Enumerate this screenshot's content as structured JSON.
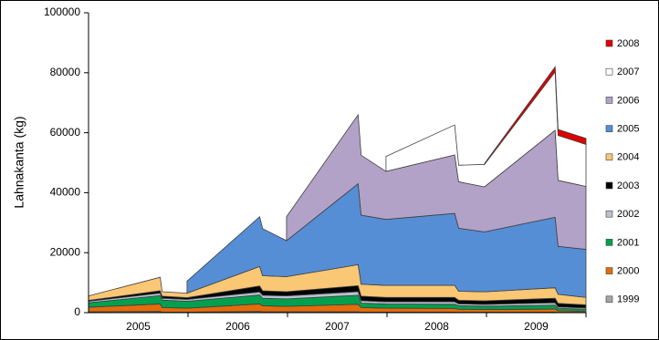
{
  "chart_data": {
    "type": "stacked_area",
    "y_label": "Lahnakanta (kg)",
    "categories": [
      "2005",
      "2006",
      "2007",
      "2008",
      "2009"
    ],
    "xlim": [
      2005,
      2010
    ],
    "ylim": [
      0,
      100000
    ],
    "yticks": [
      0,
      20000,
      40000,
      60000,
      80000,
      100000
    ],
    "grid": false,
    "legend": "right",
    "x": [
      2005.0,
      2005.72,
      2005.74,
      2005.99,
      2006.72,
      2006.75,
      2006.99,
      2007.71,
      2007.74,
      2007.99,
      2008.68,
      2008.72,
      2008.98,
      2009.69,
      2009.72,
      2010.0
    ],
    "series": [
      {
        "name": "1999",
        "color": "#a6a6a6",
        "values": [
          300,
          400,
          200,
          200,
          400,
          300,
          300,
          300,
          200,
          200,
          200,
          150,
          150,
          200,
          100,
          100
        ]
      },
      {
        "name": "2000",
        "color": "#e46c0a",
        "values": [
          1500,
          2500,
          1500,
          1300,
          2500,
          2000,
          1800,
          2500,
          1500,
          1300,
          1200,
          1000,
          900,
          1000,
          500,
          400
        ]
      },
      {
        "name": "2001",
        "color": "#00a04f",
        "values": [
          1500,
          2800,
          2500,
          2300,
          3000,
          2500,
          2500,
          3000,
          1500,
          1400,
          1400,
          1200,
          1100,
          1300,
          800,
          700
        ]
      },
      {
        "name": "2002",
        "color": "#b8c2d2",
        "values": [
          500,
          800,
          600,
          600,
          1000,
          1000,
          1000,
          1200,
          800,
          700,
          800,
          600,
          600,
          800,
          500,
          400
        ]
      },
      {
        "name": "2003",
        "color": "#000000",
        "values": [
          300,
          800,
          700,
          600,
          2000,
          1500,
          1400,
          2000,
          1500,
          1500,
          1500,
          1200,
          1200,
          1500,
          1200,
          1000
        ]
      },
      {
        "name": "2004",
        "color": "#fac775",
        "values": [
          1500,
          4500,
          1500,
          1500,
          6500,
          5000,
          5000,
          7000,
          4000,
          4000,
          4000,
          3000,
          3000,
          3500,
          3000,
          2500
        ]
      },
      {
        "name": "2005",
        "color": "#558ed5",
        "values": [
          null,
          null,
          null,
          4000,
          16600,
          15700,
          12000,
          27000,
          23000,
          22000,
          24000,
          21000,
          20000,
          23500,
          16000,
          16000
        ]
      },
      {
        "name": "2006",
        "color": "#b3a2c7",
        "values": [
          null,
          null,
          null,
          null,
          null,
          null,
          8000,
          23000,
          20000,
          16000,
          19500,
          15500,
          15000,
          29000,
          22000,
          21000
        ]
      },
      {
        "name": "2007",
        "color": "#ffffff",
        "values": [
          null,
          null,
          null,
          null,
          null,
          null,
          null,
          null,
          null,
          5000,
          10000,
          5500,
          7500,
          19500,
          15000,
          14000
        ]
      },
      {
        "name": "2008",
        "color": "#e00000",
        "values": [
          null,
          null,
          null,
          null,
          null,
          null,
          null,
          null,
          null,
          null,
          null,
          null,
          300,
          1700,
          2000,
          2000
        ]
      }
    ]
  }
}
